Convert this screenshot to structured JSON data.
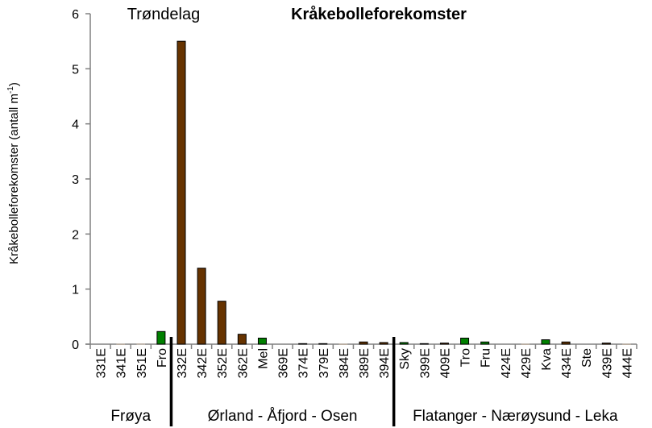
{
  "chart_data": {
    "type": "bar",
    "title": "Kråkebolleforekomster",
    "subtitle": "Trøndelag",
    "ylabel": "Kråkebolleforekomster  (antall m",
    "ylabel_sup": "-1",
    "ylabel_end": ")",
    "ylim": [
      0,
      6
    ],
    "yticks": [
      "0",
      "1",
      "2",
      "3",
      "4",
      "5",
      "6"
    ],
    "grid": false,
    "categories": [
      "331E",
      "341E",
      "351E",
      "Fro",
      "332E",
      "342E",
      "352E",
      "362E",
      "Mel",
      "369E",
      "374E",
      "379E",
      "384E",
      "389E",
      "394E",
      "Sky",
      "399E",
      "409E",
      "Tro",
      "Fru",
      "424E",
      "429E",
      "Kva",
      "434E",
      "Ste",
      "439E",
      "444E"
    ],
    "values": [
      0,
      0.003,
      0.005,
      0.23,
      5.5,
      1.38,
      0.78,
      0.18,
      0.11,
      0,
      0.01,
      0.01,
      0.003,
      0.04,
      0.03,
      0.03,
      0.01,
      0.02,
      0.11,
      0.04,
      0,
      0.003,
      0.08,
      0.04,
      0,
      0.02,
      0.003
    ],
    "colors": {
      "E": "#663300",
      "station": "#008000"
    },
    "groups": [
      {
        "label": "Frøya",
        "start": 0,
        "end": 3
      },
      {
        "label": "Ørland - Åfjord - Osen",
        "start": 4,
        "end": 14
      },
      {
        "label": "Flatanger - Nærøysund - Leka",
        "start": 15,
        "end": 26
      }
    ]
  }
}
